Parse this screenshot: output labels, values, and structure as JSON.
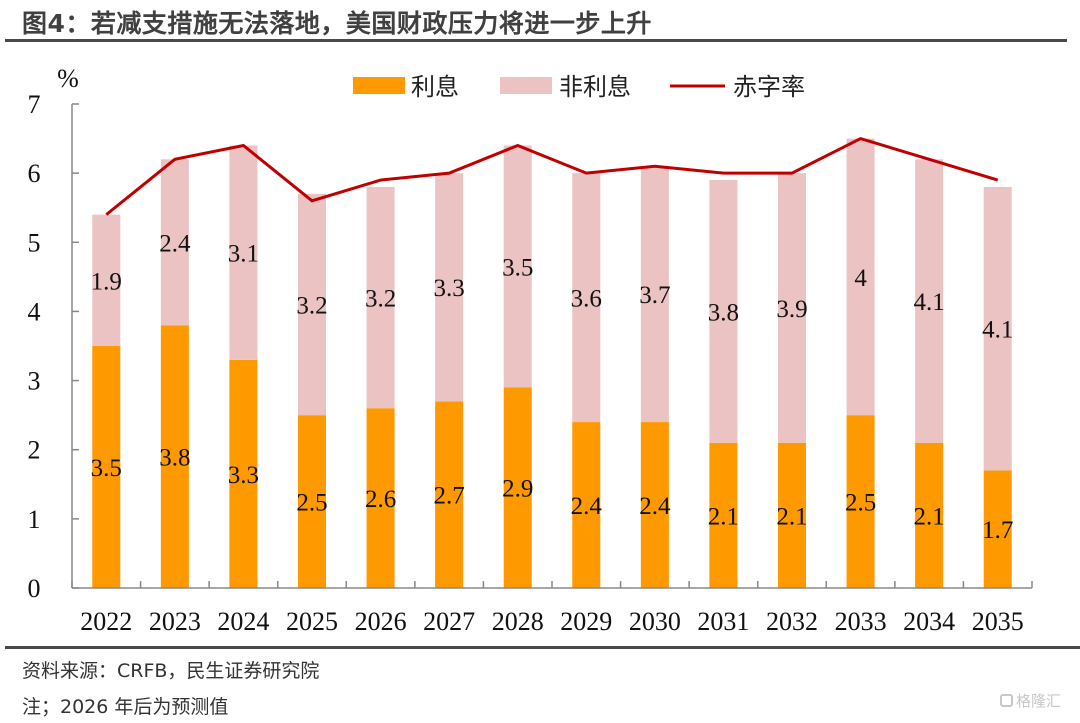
{
  "header": {
    "title": "图4：若减支措施无法落地，美国财政压力将进一步上升"
  },
  "footer": {
    "source": "资料来源：CRFB，民生证券研究院",
    "note": "注；2026 年后为预测值",
    "watermark": "格隆汇"
  },
  "colors": {
    "interest": "#FF9900",
    "non_interest": "#EBC3C3",
    "deficit_line": "#C00000",
    "axis": "#888888"
  },
  "chart_data": {
    "type": "bar",
    "stacked": true,
    "title": "",
    "ylabel": "%",
    "xlabel": "",
    "ylim": [
      0,
      7
    ],
    "yticks": [
      "0",
      "1",
      "2",
      "3",
      "4",
      "5",
      "6",
      "7"
    ],
    "grid": false,
    "legend_position": "top",
    "categories": [
      "2022",
      "2023",
      "2024",
      "2025",
      "2026",
      "2027",
      "2028",
      "2029",
      "2030",
      "2031",
      "2032",
      "2033",
      "2034",
      "2035"
    ],
    "series": [
      {
        "name": "利息",
        "type": "bar",
        "values": [
          3.5,
          3.8,
          3.3,
          2.5,
          2.6,
          2.7,
          2.9,
          2.4,
          2.4,
          2.1,
          2.1,
          2.5,
          2.1,
          1.7
        ],
        "labels": [
          "3.5",
          "3.8",
          "3.3",
          "2.5",
          "2.6",
          "2.7",
          "2.9",
          "2.4",
          "2.4",
          "2.1",
          "2.1",
          "2.5",
          "2.1",
          "1.7"
        ]
      },
      {
        "name": "非利息",
        "type": "bar",
        "values": [
          1.9,
          2.4,
          3.1,
          3.2,
          3.2,
          3.3,
          3.5,
          3.6,
          3.7,
          3.8,
          3.9,
          4.0,
          4.1,
          4.1
        ],
        "labels": [
          "1.9",
          "2.4",
          "3.1",
          "3.2",
          "3.2",
          "3.3",
          "3.5",
          "3.6",
          "3.7",
          "3.8",
          "3.9",
          "4",
          "4.1",
          "4.1"
        ]
      },
      {
        "name": "赤字率",
        "type": "line",
        "values": [
          5.4,
          6.2,
          6.4,
          5.6,
          5.9,
          6.0,
          6.4,
          6.0,
          6.1,
          6.0,
          6.0,
          6.5,
          6.2,
          5.9
        ]
      }
    ]
  }
}
